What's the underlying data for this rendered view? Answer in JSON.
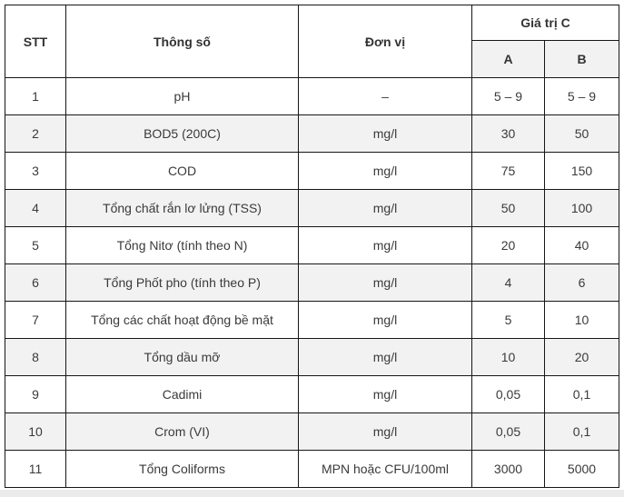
{
  "page": {
    "background_color": "#ffffff",
    "footer_strip_color": "#ebebeb"
  },
  "table": {
    "border_color": "#161616",
    "text_color": "#3a3a3a",
    "shaded_row_color": "#f2f2f2",
    "headers": {
      "stt": "STT",
      "param": "Thông số",
      "unit": "Đơn vị",
      "value_group": "Giá trị C",
      "col_a": "A",
      "col_b": "B"
    },
    "rows": [
      {
        "stt": "1",
        "param": "pH",
        "unit": "–",
        "a": "5 – 9",
        "b": "5 – 9",
        "shaded": false
      },
      {
        "stt": "2",
        "param": "BOD5 (200C)",
        "unit": "mg/l",
        "a": "30",
        "b": "50",
        "shaded": true
      },
      {
        "stt": "3",
        "param": "COD",
        "unit": "mg/l",
        "a": "75",
        "b": "150",
        "shaded": false
      },
      {
        "stt": "4",
        "param": "Tổng chất rắn lơ lửng (TSS)",
        "unit": "mg/l",
        "a": "50",
        "b": "100",
        "shaded": true
      },
      {
        "stt": "5",
        "param": "Tổng Nitơ (tính theo N)",
        "unit": "mg/l",
        "a": "20",
        "b": "40",
        "shaded": false
      },
      {
        "stt": "6",
        "param": "Tổng Phốt pho (tính theo P)",
        "unit": "mg/l",
        "a": "4",
        "b": "6",
        "shaded": true
      },
      {
        "stt": "7",
        "param": "Tổng các chất hoạt động bề mặt",
        "unit": "mg/l",
        "a": "5",
        "b": "10",
        "shaded": false
      },
      {
        "stt": "8",
        "param": "Tổng dầu mỡ",
        "unit": "mg/l",
        "a": "10",
        "b": "20",
        "shaded": true
      },
      {
        "stt": "9",
        "param": "Cadimi",
        "unit": "mg/l",
        "a": "0,05",
        "b": "0,1",
        "shaded": false
      },
      {
        "stt": "10",
        "param": "Crom (VI)",
        "unit": "mg/l",
        "a": "0,05",
        "b": "0,1",
        "shaded": true
      },
      {
        "stt": "11",
        "param": "Tổng Coliforms",
        "unit": "MPN hoặc CFU/100ml",
        "a": "3000",
        "b": "5000",
        "shaded": false
      }
    ]
  }
}
